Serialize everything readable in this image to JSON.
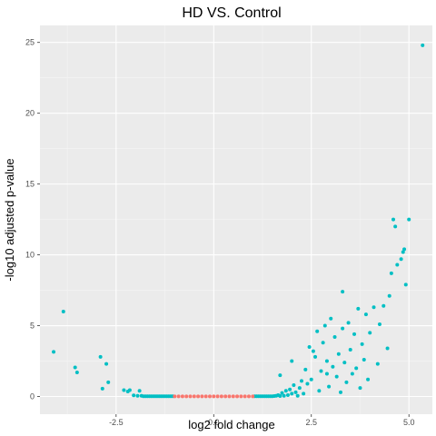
{
  "chart_data": {
    "type": "scatter",
    "title": "HD VS. Control",
    "xlabel": "log2 fold change",
    "ylabel": "-log10 adjusted p-value",
    "xlim": [
      -4.45,
      5.6
    ],
    "ylim": [
      -1.25,
      26.2
    ],
    "x_ticks": [
      -2.5,
      0.0,
      2.5,
      5.0
    ],
    "x_tick_labels": [
      "-2.5",
      "0.0",
      "2.5",
      "5.0"
    ],
    "y_ticks": [
      0,
      5,
      10,
      15,
      20,
      25
    ],
    "y_tick_labels": [
      "0",
      "5",
      "10",
      "15",
      "20",
      "25"
    ],
    "grid": true,
    "panel_color": "#ebebeb",
    "colors": {
      "significant": "#00bfc4",
      "not_significant": "#f8766d"
    },
    "series": [
      {
        "color": "#00bfc4",
        "points": [
          [
            -4.1,
            3.15
          ],
          [
            -3.85,
            6.0
          ],
          [
            -3.55,
            2.05
          ],
          [
            -3.5,
            1.7
          ],
          [
            -2.9,
            2.8
          ],
          [
            -2.85,
            0.55
          ],
          [
            -2.75,
            2.3
          ],
          [
            -2.7,
            1.0
          ],
          [
            -2.3,
            0.45
          ],
          [
            -2.2,
            0.35
          ],
          [
            -2.15,
            0.45
          ],
          [
            -2.05,
            0.08
          ],
          [
            -1.95,
            0.05
          ],
          [
            -1.9,
            0.4
          ],
          [
            -1.85,
            0.05
          ],
          [
            -1.8,
            0.02
          ],
          [
            -1.75,
            0.02
          ],
          [
            -1.7,
            0.02
          ],
          [
            -1.65,
            0.02
          ],
          [
            -1.6,
            0.02
          ],
          [
            -1.55,
            0.02
          ],
          [
            -1.5,
            0.02
          ],
          [
            -1.45,
            0.02
          ],
          [
            -1.4,
            0.02
          ],
          [
            -1.35,
            0.02
          ],
          [
            -1.3,
            0.02
          ],
          [
            -1.25,
            0.02
          ],
          [
            -1.2,
            0.02
          ],
          [
            -1.15,
            0.02
          ],
          [
            -1.1,
            0.02
          ],
          [
            -1.05,
            0.02
          ],
          [
            1.05,
            0.02
          ],
          [
            1.1,
            0.02
          ],
          [
            1.15,
            0.02
          ],
          [
            1.2,
            0.02
          ],
          [
            1.25,
            0.02
          ],
          [
            1.3,
            0.02
          ],
          [
            1.35,
            0.02
          ],
          [
            1.4,
            0.02
          ],
          [
            1.45,
            0.02
          ],
          [
            1.5,
            0.02
          ],
          [
            1.55,
            0.03
          ],
          [
            1.6,
            0.05
          ],
          [
            1.65,
            0.1
          ],
          [
            1.7,
            0.03
          ],
          [
            1.75,
            0.25
          ],
          [
            1.8,
            0.05
          ],
          [
            1.85,
            0.4
          ],
          [
            1.9,
            0.1
          ],
          [
            1.95,
            0.5
          ],
          [
            2.0,
            0.2
          ],
          [
            2.05,
            0.8
          ],
          [
            2.1,
            0.3
          ],
          [
            2.15,
            0.05
          ],
          [
            2.2,
            0.6
          ],
          [
            2.25,
            1.1
          ],
          [
            2.3,
            0.2
          ],
          [
            2.35,
            1.9
          ],
          [
            2.4,
            0.9
          ],
          [
            2.45,
            3.5
          ],
          [
            2.5,
            1.2
          ],
          [
            2.55,
            3.2
          ],
          [
            2.6,
            2.8
          ],
          [
            2.65,
            4.6
          ],
          [
            2.7,
            0.4
          ],
          [
            2.75,
            1.8
          ],
          [
            2.8,
            3.8
          ],
          [
            2.85,
            5.0
          ],
          [
            2.9,
            2.5
          ],
          [
            2.95,
            0.7
          ],
          [
            3.0,
            5.5
          ],
          [
            3.05,
            2.1
          ],
          [
            3.1,
            4.2
          ],
          [
            3.15,
            1.4
          ],
          [
            3.2,
            3.0
          ],
          [
            3.25,
            0.3
          ],
          [
            3.3,
            4.8
          ],
          [
            3.35,
            2.4
          ],
          [
            3.4,
            1.0
          ],
          [
            3.45,
            5.2
          ],
          [
            3.5,
            3.3
          ],
          [
            3.55,
            1.6
          ],
          [
            3.6,
            4.4
          ],
          [
            3.65,
            2.0
          ],
          [
            3.7,
            6.2
          ],
          [
            3.75,
            0.6
          ],
          [
            3.8,
            3.7
          ],
          [
            3.85,
            2.6
          ],
          [
            3.9,
            5.8
          ],
          [
            3.95,
            1.2
          ],
          [
            4.0,
            4.5
          ],
          [
            4.1,
            6.3
          ],
          [
            4.2,
            2.3
          ],
          [
            4.25,
            5.1
          ],
          [
            4.35,
            6.4
          ],
          [
            4.45,
            3.4
          ],
          [
            4.5,
            7.1
          ],
          [
            4.55,
            8.7
          ],
          [
            4.6,
            12.5
          ],
          [
            4.65,
            12.0
          ],
          [
            4.7,
            9.3
          ],
          [
            4.8,
            9.7
          ],
          [
            4.85,
            10.2
          ],
          [
            4.88,
            10.4
          ],
          [
            4.92,
            7.9
          ],
          [
            5.0,
            12.5
          ],
          [
            5.35,
            24.8
          ],
          [
            2.0,
            2.5
          ],
          [
            1.7,
            1.5
          ],
          [
            3.3,
            7.4
          ],
          [
            2.9,
            1.6
          ]
        ]
      },
      {
        "color": "#f8766d",
        "points": [
          [
            -1.0,
            0.01
          ],
          [
            -0.9,
            0.01
          ],
          [
            -0.8,
            0.01
          ],
          [
            -0.7,
            0.01
          ],
          [
            -0.6,
            0.01
          ],
          [
            -0.5,
            0.01
          ],
          [
            -0.4,
            0.01
          ],
          [
            -0.3,
            0.01
          ],
          [
            -0.2,
            0.01
          ],
          [
            -0.1,
            0.01
          ],
          [
            0.0,
            0.01
          ],
          [
            0.1,
            0.01
          ],
          [
            0.2,
            0.01
          ],
          [
            0.3,
            0.01
          ],
          [
            0.4,
            0.01
          ],
          [
            0.5,
            0.01
          ],
          [
            0.6,
            0.01
          ],
          [
            0.7,
            0.01
          ],
          [
            0.8,
            0.01
          ],
          [
            0.9,
            0.01
          ],
          [
            1.0,
            0.01
          ]
        ]
      }
    ]
  }
}
